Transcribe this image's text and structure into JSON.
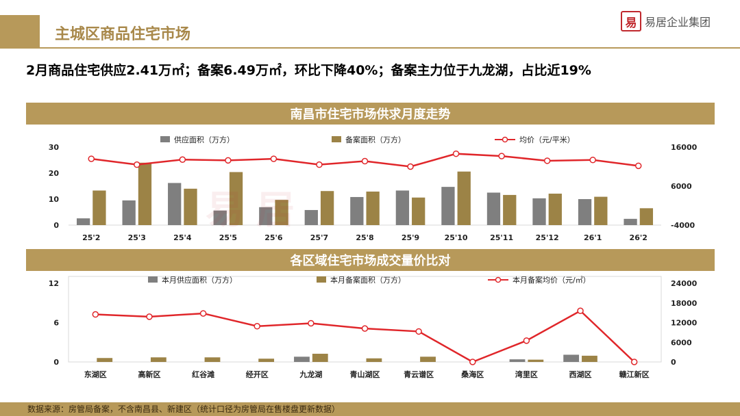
{
  "header": {
    "title": "主城区商品住宅市场"
  },
  "logo": {
    "mark": "易",
    "text": "易居企业集团"
  },
  "headline": "2月商品住宅供应2.41万㎡；备案6.49万㎡，环比下降40%；备案主力位于九龙湖，占比近19%",
  "watermark": "易居企业集团",
  "footer": {
    "source": "数据来源：房管局备案，不含南昌县、新建区（统计口径为房管局在售楼盘更新数据）"
  },
  "colors": {
    "supply": "#7f7f7f",
    "filing": "#9c8346",
    "price": "#e0262a",
    "band": "#b7995a"
  },
  "chart_data": [
    {
      "type": "bar",
      "title": "南昌市住宅市场供求月度走势",
      "categories": [
        "25'2",
        "25'3",
        "25'4",
        "25'5",
        "25'6",
        "25'7",
        "25'8",
        "25'9",
        "25'10",
        "25'11",
        "25'12",
        "26'1",
        "26'2"
      ],
      "series": [
        {
          "name": "供应面积（万方）",
          "type": "bar",
          "axis": "left",
          "values": [
            2.6,
            9.5,
            16.2,
            5.6,
            6.9,
            5.8,
            10.8,
            13.3,
            14.7,
            12.5,
            10.3,
            10.0,
            2.41
          ]
        },
        {
          "name": "备案面积（万方）",
          "type": "bar",
          "axis": "left",
          "values": [
            13.3,
            24.0,
            14.0,
            20.4,
            9.7,
            13.1,
            12.9,
            10.6,
            20.6,
            11.6,
            12.1,
            10.9,
            6.49
          ]
        },
        {
          "name": "均价（元/平米）",
          "type": "line",
          "axis": "right",
          "values": [
            13000,
            11500,
            12800,
            12600,
            13000,
            11500,
            12400,
            11000,
            14300,
            13700,
            12500,
            12700,
            11200
          ]
        }
      ],
      "y_left": {
        "ticks": [
          0,
          10,
          20,
          30
        ],
        "range": [
          0,
          30
        ]
      },
      "y_right": {
        "ticks": [
          -4000,
          6000,
          16000
        ],
        "range": [
          -4000,
          16000
        ]
      },
      "legend_position": "top"
    },
    {
      "type": "bar",
      "title": "各区域住宅市场成交量价比对",
      "categories": [
        "东湖区",
        "高新区",
        "红谷滩",
        "经开区",
        "九龙湖",
        "青山湖区",
        "青云谱区",
        "桑海区",
        "湾里区",
        "西湖区",
        "赣江新区"
      ],
      "series": [
        {
          "name": "本月供应面积（万方）",
          "type": "bar",
          "axis": "left",
          "values": [
            0,
            0,
            0,
            0,
            0.8,
            0,
            0,
            0,
            0.4,
            1.1,
            0
          ]
        },
        {
          "name": "本月备案面积（万方）",
          "type": "bar",
          "axis": "left",
          "values": [
            0.6,
            0.7,
            0.7,
            0.5,
            1.25,
            0.55,
            0.8,
            0,
            0.35,
            0.95,
            0
          ]
        },
        {
          "name": "本月备案均价（元/㎡）",
          "type": "line",
          "axis": "right",
          "values": [
            14500,
            13800,
            14800,
            10900,
            11800,
            10200,
            9300,
            0,
            6500,
            15600,
            0
          ]
        }
      ],
      "y_left": {
        "ticks": [
          0,
          6,
          12
        ],
        "range": [
          0,
          12
        ]
      },
      "y_right": {
        "ticks": [
          0,
          6000,
          12000,
          18000,
          24000
        ],
        "range": [
          0,
          24000
        ]
      },
      "legend_position": "top"
    }
  ]
}
